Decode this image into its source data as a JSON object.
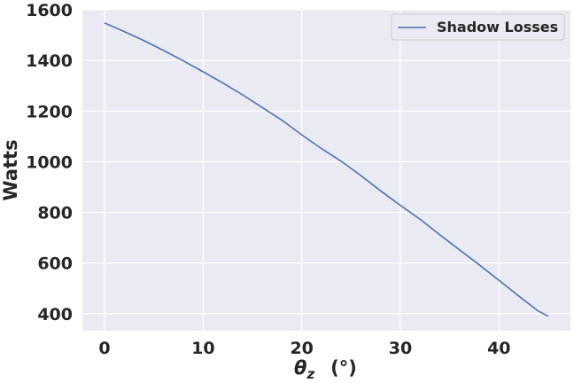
{
  "chart_data": {
    "type": "line",
    "xlabel_symbol": "θ",
    "xlabel_subscript": "z",
    "xlabel_unit": "(°)",
    "ylabel": "Watts",
    "xlim": [
      -2.25,
      47.25
    ],
    "ylim": [
      333,
      1600
    ],
    "xticks": [
      0,
      10,
      20,
      30,
      40
    ],
    "yticks": [
      400,
      600,
      800,
      1000,
      1200,
      1400,
      1600
    ],
    "grid": true,
    "legend_position": "top-right",
    "colors": {
      "background": "#eaeaf2",
      "grid": "#ffffff",
      "line": "#4c72b0",
      "text": "#262626"
    },
    "series": [
      {
        "name": "Shadow Losses",
        "x": [
          0,
          2,
          4,
          6,
          8,
          10,
          12,
          14,
          16,
          18,
          20,
          22,
          24,
          26,
          28,
          30,
          32,
          34,
          36,
          38,
          40,
          42,
          44,
          45
        ],
        "y": [
          1548,
          1514,
          1478,
          1439,
          1398,
          1355,
          1311,
          1264,
          1214,
          1164,
          1106,
          1052,
          1002,
          945,
          885,
          828,
          773,
          712,
          652,
          593,
          532,
          470,
          410,
          390
        ]
      }
    ]
  }
}
